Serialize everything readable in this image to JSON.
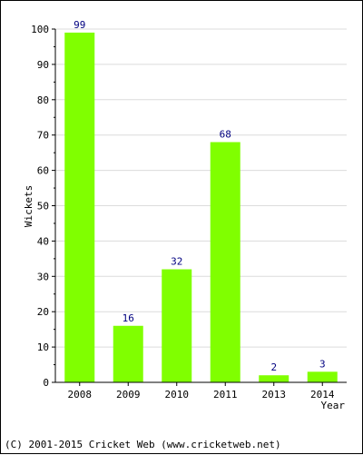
{
  "chart_data": {
    "type": "bar",
    "categories": [
      "2008",
      "2009",
      "2010",
      "2011",
      "2013",
      "2014"
    ],
    "values": [
      99,
      16,
      32,
      68,
      2,
      3
    ],
    "data_labels": [
      "99",
      "16",
      "32",
      "68",
      "2",
      "3"
    ],
    "xlabel": "Year",
    "ylabel": "Wickets",
    "ylim": [
      0,
      100
    ],
    "yticks": [
      0,
      10,
      20,
      30,
      40,
      50,
      60,
      70,
      80,
      90,
      100
    ],
    "grid": true,
    "colors": {
      "bar": "#80ff00",
      "data_label": "#000080",
      "grid": "#dcdcdc",
      "axis": "#000000"
    }
  },
  "footer": {
    "copyright": "(C) 2001-2015 Cricket Web (www.cricketweb.net)"
  }
}
